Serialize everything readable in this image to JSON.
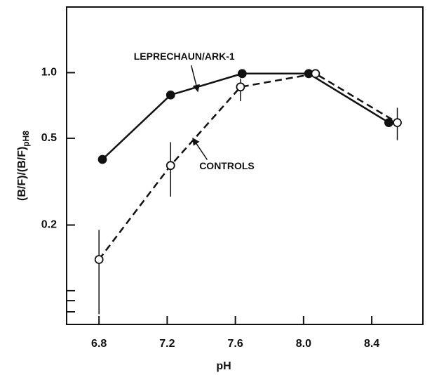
{
  "chart_data": {
    "type": "line",
    "xlabel": "pH",
    "ylabel": "(B/F)/(B/F)",
    "ylabel_subscript": "pH8",
    "log_y": true,
    "xlim": [
      6.61,
      8.7
    ],
    "ylim": [
      0.07,
      2
    ],
    "xticks": [
      6.8,
      7.2,
      7.6,
      8.0,
      8.4
    ],
    "yticks": [
      {
        "value": 0.2,
        "label": "0.2"
      },
      {
        "value": 0.5,
        "label": "0.5"
      },
      {
        "value": 1,
        "label": "1.0"
      }
    ],
    "minor_yticks": [
      0.08,
      0.09,
      0.1
    ],
    "series": [
      {
        "name": "LEPRECHAUN/ARK-1",
        "color": "#111111",
        "marker": "filled",
        "dash": false,
        "x": [
          6.82,
          7.22,
          7.64,
          8.03,
          8.5
        ],
        "values": [
          0.4,
          0.79,
          0.99,
          0.99,
          0.59
        ]
      },
      {
        "name": "CONTROLS",
        "color": "#111111",
        "marker": "open",
        "dash": true,
        "x": [
          6.8,
          7.22,
          7.63,
          8.07,
          8.55
        ],
        "values": [
          0.139,
          0.375,
          0.86,
          0.99,
          0.59
        ],
        "error_low": [
          0.078,
          0.27,
          0.74,
          null,
          0.49
        ],
        "error_high": [
          0.19,
          0.48,
          0.94,
          null,
          0.69
        ]
      }
    ],
    "annotations": [
      {
        "text": "LEPRECHAUN/ARK-1",
        "x": 7.3,
        "y": 1.18,
        "arrow_x": 7.38,
        "arrow_y": 0.82
      },
      {
        "text": "CONTROLS",
        "x": 7.55,
        "y": 0.37,
        "arrow_x": 7.35,
        "arrow_y": 0.5
      }
    ]
  }
}
